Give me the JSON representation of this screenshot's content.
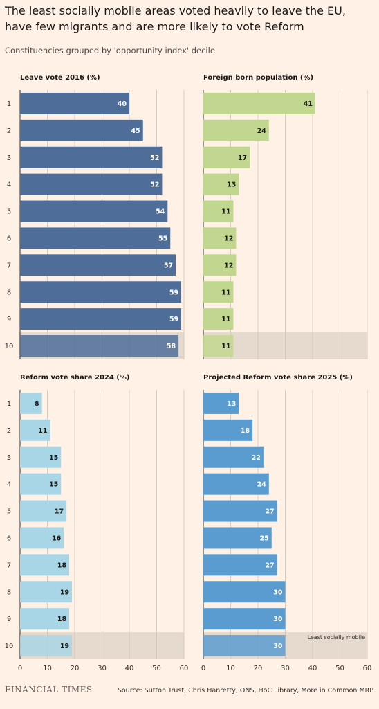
{
  "title": "The least socially mobile areas voted heavily to leave the EU, have few migrants and are more likely to vote Reform",
  "subtitle": "Constituencies grouped by 'opportunity index' decile",
  "footer": {
    "brand": "FINANCIAL TIMES",
    "source": "Source: Sutton Trust, Chris Hanretty, ONS, HoC Library, More in Common MRP"
  },
  "colors": {
    "background": "#FFF1E5",
    "highlight_band": "#E6D9CE",
    "leave": "#4E6D99",
    "foreign": "#C1D78F",
    "reform2024": "#A8D6E6",
    "reform2025": "#5B9CD0"
  },
  "chart_data": [
    {
      "type": "bar",
      "orientation": "horizontal",
      "title": "Leave vote 2016 (%)",
      "categories": [
        "1",
        "2",
        "3",
        "4",
        "5",
        "6",
        "7",
        "8",
        "9",
        "10"
      ],
      "values": [
        40,
        45,
        52,
        52,
        54,
        55,
        57,
        59,
        59,
        58
      ],
      "xlim": [
        0,
        60
      ],
      "ticks": [
        0,
        10,
        20,
        30,
        40,
        50,
        60
      ],
      "show_tick_labels": false,
      "highlight": "10",
      "color": "#4E6D99",
      "label_color": "#FFFFFF"
    },
    {
      "type": "bar",
      "orientation": "horizontal",
      "title": "Foreign born population (%)",
      "categories": [
        "1",
        "2",
        "3",
        "4",
        "5",
        "6",
        "7",
        "8",
        "9",
        "10"
      ],
      "values": [
        41,
        24,
        17,
        13,
        11,
        12,
        12,
        11,
        11,
        11
      ],
      "xlim": [
        0,
        60
      ],
      "ticks": [
        0,
        10,
        20,
        30,
        40,
        50,
        60
      ],
      "show_tick_labels": false,
      "highlight": "10",
      "color": "#C1D78F",
      "label_color": "#1A1817"
    },
    {
      "type": "bar",
      "orientation": "horizontal",
      "title": "Reform vote share 2024 (%)",
      "categories": [
        "1",
        "2",
        "3",
        "4",
        "5",
        "6",
        "7",
        "8",
        "9",
        "10"
      ],
      "values": [
        8,
        11,
        15,
        15,
        17,
        16,
        18,
        19,
        18,
        19
      ],
      "xlim": [
        0,
        60
      ],
      "ticks": [
        0,
        10,
        20,
        30,
        40,
        50,
        60
      ],
      "show_tick_labels": true,
      "highlight": "10",
      "color": "#A8D6E6",
      "label_color": "#1A1817"
    },
    {
      "type": "bar",
      "orientation": "horizontal",
      "title": "Projected Reform vote share 2025 (%)",
      "categories": [
        "1",
        "2",
        "3",
        "4",
        "5",
        "6",
        "7",
        "8",
        "9",
        "10"
      ],
      "values": [
        13,
        18,
        22,
        24,
        27,
        25,
        27,
        30,
        30,
        30
      ],
      "xlim": [
        0,
        60
      ],
      "ticks": [
        0,
        10,
        20,
        30,
        40,
        50,
        60
      ],
      "show_tick_labels": true,
      "highlight": "10",
      "annotation": "Least socially mobile",
      "color": "#5B9CD0",
      "label_color": "#FFFFFF"
    }
  ]
}
